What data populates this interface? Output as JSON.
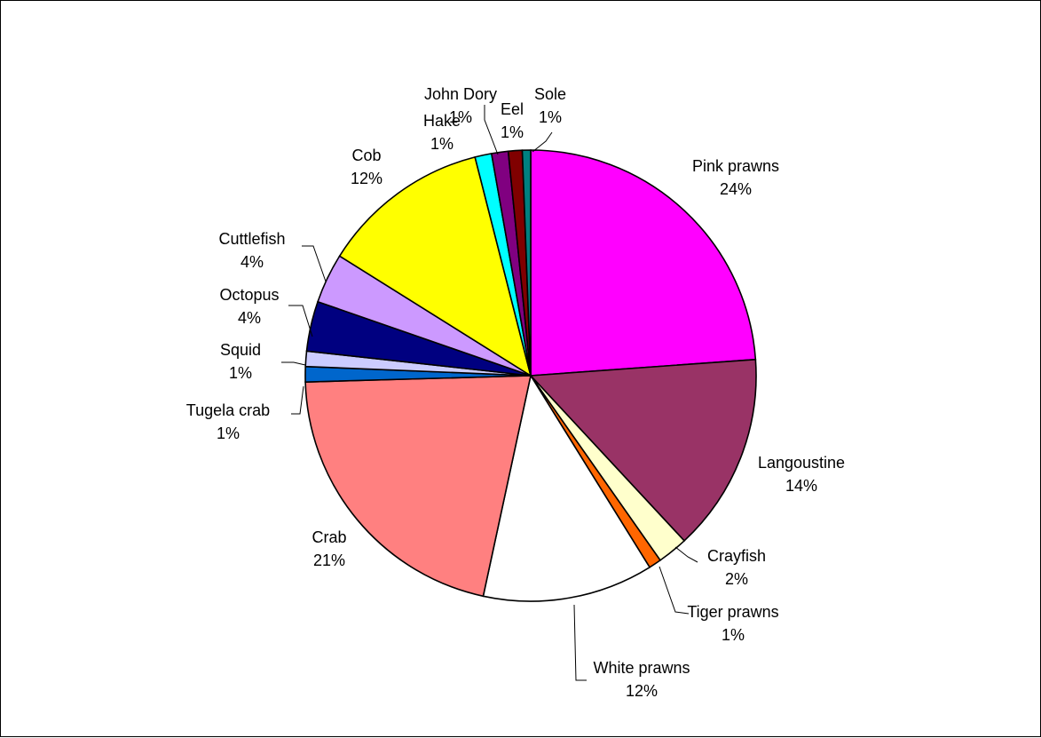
{
  "chart_data": {
    "type": "pie",
    "title": "",
    "start_angle_deg": 0,
    "direction": "clockwise",
    "slices": [
      {
        "label": "Pink prawns",
        "value": 24.0,
        "display": "24%",
        "color": "#FF00FF"
      },
      {
        "label": "Langoustine",
        "value": 14.3,
        "display": "14%",
        "color": "#993366"
      },
      {
        "label": "Crayfish",
        "value": 2.2,
        "display": "2%",
        "color": "#FFFFCC"
      },
      {
        "label": "Tiger prawns",
        "value": 0.9,
        "display": "1%",
        "color": "#FF6600"
      },
      {
        "label": "White prawns",
        "value": 12.3,
        "display": "12%",
        "color": "#FFFFFF"
      },
      {
        "label": "Crab",
        "value": 21.3,
        "display": "21%",
        "color": "#FF8080"
      },
      {
        "label": "Tugela crab",
        "value": 1.1,
        "display": "1%",
        "color": "#0066CC"
      },
      {
        "label": "Squid",
        "value": 1.1,
        "display": "1%",
        "color": "#CCCCFF"
      },
      {
        "label": "Octopus",
        "value": 3.6,
        "display": "4%",
        "color": "#000080"
      },
      {
        "label": "Cuttlefish",
        "value": 3.6,
        "display": "4%",
        "color": "#CC99FF"
      },
      {
        "label": "Cob",
        "value": 12.2,
        "display": "12%",
        "color": "#FFFF00"
      },
      {
        "label": "Hake",
        "value": 1.2,
        "display": "1%",
        "color": "#00FFFF"
      },
      {
        "label": "John Dory",
        "value": 1.2,
        "display": "1%",
        "color": "#800080"
      },
      {
        "label": "Eel",
        "value": 1.0,
        "display": "1%",
        "color": "#800000"
      },
      {
        "label": "Sole",
        "value": 0.6,
        "display": "1%",
        "color": "#008080"
      }
    ]
  }
}
